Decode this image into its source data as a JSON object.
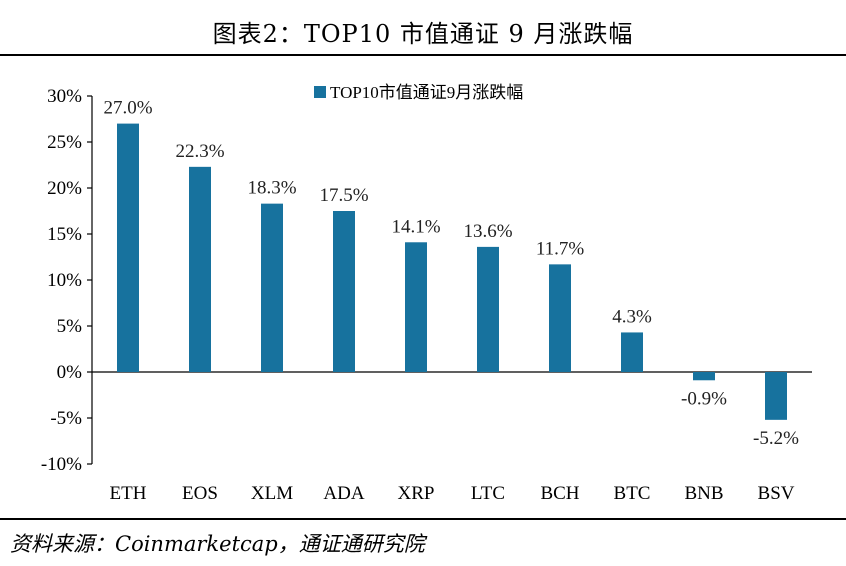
{
  "title": "图表2：TOP10 市值通证 9 月涨跌幅",
  "source": "资料来源：Coinmarketcap，通证通研究院",
  "colors": {
    "bar": "#17729E",
    "axis": "#000000"
  },
  "chart_data": {
    "type": "bar",
    "categories": [
      "ETH",
      "EOS",
      "XLM",
      "ADA",
      "XRP",
      "LTC",
      "BCH",
      "BTC",
      "BNB",
      "BSV"
    ],
    "series": [
      {
        "name": "TOP10市值通证9月涨跌幅",
        "values": [
          27.0,
          22.3,
          18.3,
          17.5,
          14.1,
          13.6,
          11.7,
          4.3,
          -0.9,
          -5.2
        ]
      }
    ],
    "data_labels": [
      "27.0%",
      "22.3%",
      "18.3%",
      "17.5%",
      "14.1%",
      "13.6%",
      "11.7%",
      "4.3%",
      "-0.9%",
      "-5.2%"
    ],
    "yticks": [
      "30%",
      "25%",
      "20%",
      "15%",
      "10%",
      "5%",
      "0%",
      "-5%",
      "-10%"
    ],
    "ylim": [
      -10,
      30
    ],
    "grid": false,
    "legend_position": "top-center"
  }
}
